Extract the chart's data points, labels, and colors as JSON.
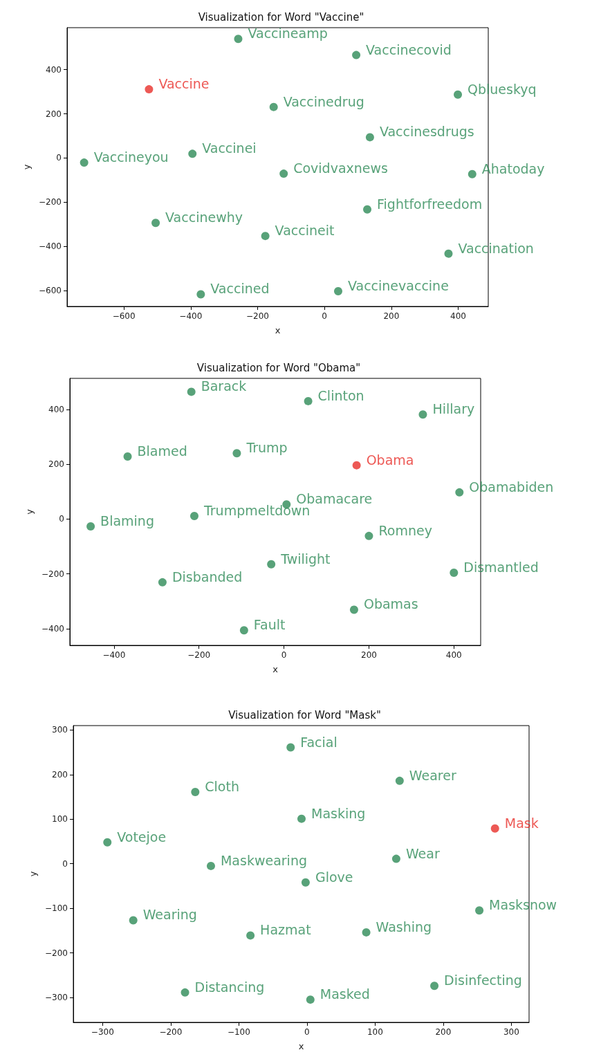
{
  "chart_data": [
    {
      "type": "scatter",
      "title": "Visualization for Word \"Vaccine\"",
      "xlabel": "x",
      "ylabel": "y",
      "xlim": [
        -770,
        490
      ],
      "ylim": [
        -672,
        590
      ],
      "xticks": [
        -600,
        -400,
        -200,
        0,
        200,
        400
      ],
      "yticks": [
        -600,
        -400,
        -200,
        0,
        200,
        400
      ],
      "marker": "circle",
      "series": [
        {
          "color": "#2e8b57",
          "x": [
            -258,
            95,
            399,
            -152,
            136,
            -719,
            -395,
            -122,
            442,
            128,
            -505,
            -177,
            371,
            -370,
            41
          ],
          "values": [
            539,
            466,
            287,
            231,
            94,
            -21,
            19,
            -71,
            -73,
            -233,
            -294,
            -353,
            -433,
            -617,
            -603
          ],
          "value_labels": [
            "Vaccineamp",
            "Vaccinecovid",
            "Qblueskyq",
            "Vaccinedrug",
            "Vaccinesdrugs",
            "Vaccineyou",
            "Vaccinei",
            "Covidvaxnews",
            "Ahatoday",
            "Fightforfreedom",
            "Vaccinewhy",
            "Vaccineit",
            "Vaccination",
            "Vaccined",
            "Vaccinevaccine"
          ]
        },
        {
          "color": "#e8302a",
          "x": [
            -525
          ],
          "values": [
            311
          ],
          "value_labels": [
            "Vaccine"
          ]
        }
      ]
    },
    {
      "type": "scatter",
      "title": "Visualization for Word \"Obama\"",
      "xlabel": "x",
      "ylabel": "y",
      "xlim": [
        -504,
        463
      ],
      "ylim": [
        -461,
        513
      ],
      "xticks": [
        -400,
        -200,
        0,
        200,
        400
      ],
      "yticks": [
        -400,
        -200,
        0,
        200,
        400
      ],
      "marker": "circle",
      "series": [
        {
          "color": "#2e8b57",
          "x": [
            -218,
            57,
            327,
            -368,
            -111,
            413,
            6,
            -211,
            -455,
            200,
            -30,
            400,
            -286,
            165,
            -94
          ],
          "values": [
            464,
            430,
            381,
            228,
            240,
            97,
            53,
            11,
            -27,
            -62,
            -165,
            -196,
            -231,
            -331,
            -406
          ],
          "value_labels": [
            "Barack",
            "Clinton",
            "Hillary",
            "Blamed",
            "Trump",
            "Obamabiden",
            "Obamacare",
            "Trumpmeltdown",
            "Blaming",
            "Romney",
            "Twilight",
            "Dismantled",
            "Disbanded",
            "Obamas",
            "Fault"
          ]
        },
        {
          "color": "#e8302a",
          "x": [
            171
          ],
          "values": [
            196
          ],
          "value_labels": [
            "Obama"
          ]
        }
      ]
    },
    {
      "type": "scatter",
      "title": "Visualization for Word \"Mask\"",
      "xlabel": "x",
      "ylabel": "y",
      "xlim": [
        -343,
        326
      ],
      "ylim": [
        -356,
        310
      ],
      "xticks": [
        -300,
        -200,
        -100,
        0,
        100,
        200,
        300
      ],
      "yticks": [
        -300,
        -200,
        -100,
        0,
        100,
        200,
        300
      ],
      "marker": "circle",
      "series": [
        {
          "color": "#2e8b57",
          "x": [
            -24,
            136,
            -164,
            -8,
            -293,
            131,
            -141,
            -2,
            253,
            -255,
            87,
            -83,
            187,
            -179,
            5
          ],
          "values": [
            261,
            186,
            161,
            101,
            48,
            11,
            -5,
            -42,
            -105,
            -127,
            -154,
            -161,
            -274,
            -289,
            -305
          ],
          "value_labels": [
            "Facial",
            "Wearer",
            "Cloth",
            "Masking",
            "Votejoe",
            "Wear",
            "Maskwearing",
            "Glove",
            "Masksnow",
            "Wearing",
            "Washing",
            "Hazmat",
            "Disinfecting",
            "Distancing",
            "Masked"
          ]
        },
        {
          "color": "#e8302a",
          "x": [
            276
          ],
          "values": [
            79
          ],
          "value_labels": [
            "Mask"
          ]
        }
      ]
    }
  ]
}
